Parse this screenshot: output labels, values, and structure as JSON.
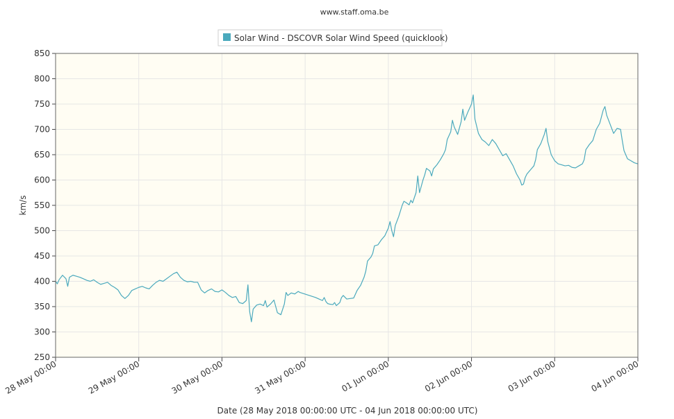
{
  "page": {
    "source_label": "www.staff.oma.be"
  },
  "colors": {
    "series": "#4aa9bd",
    "plot_background": "#fffdf3",
    "grid": "#e6e6e6",
    "axis": "#444444",
    "text": "#333333"
  },
  "chart_data": {
    "type": "line",
    "title": "",
    "xlabel": "Date (28 May 2018 00:00:00 UTC - 04 Jun 2018 00:00:00 UTC)",
    "ylabel": "km/s",
    "legend": {
      "position": "top-center",
      "entries": [
        "Solar Wind - DSCOVR Solar Wind Speed (quicklook)"
      ]
    },
    "grid": true,
    "x_range_hours": [
      0,
      168
    ],
    "ylim": [
      250,
      850
    ],
    "y_ticks": [
      250,
      300,
      350,
      400,
      450,
      500,
      550,
      600,
      650,
      700,
      750,
      800,
      850
    ],
    "x_ticks": [
      {
        "label": "28 May 00:00",
        "hour": 0
      },
      {
        "label": "29 May 00:00",
        "hour": 24
      },
      {
        "label": "30 May 00:00",
        "hour": 48
      },
      {
        "label": "31 May 00:00",
        "hour": 72
      },
      {
        "label": "01 Jun 00:00",
        "hour": 96
      },
      {
        "label": "02 Jun 00:00",
        "hour": 120
      },
      {
        "label": "03 Jun 00:00",
        "hour": 144
      },
      {
        "label": "04 Jun 00:00",
        "hour": 168
      }
    ],
    "series": [
      {
        "name": "Solar Wind - DSCOVR Solar Wind Speed (quicklook)",
        "x_unit": "hours since 28 May 2018 00:00 UTC",
        "points": [
          [
            0,
            400
          ],
          [
            0.5,
            395
          ],
          [
            1,
            403
          ],
          [
            2,
            412
          ],
          [
            3,
            405
          ],
          [
            3.5,
            390
          ],
          [
            4,
            408
          ],
          [
            5,
            412
          ],
          [
            6,
            410
          ],
          [
            7,
            408
          ],
          [
            8,
            405
          ],
          [
            9,
            402
          ],
          [
            10,
            400
          ],
          [
            11,
            403
          ],
          [
            12,
            398
          ],
          [
            13,
            394
          ],
          [
            14,
            396
          ],
          [
            15,
            398
          ],
          [
            16,
            392
          ],
          [
            17,
            388
          ],
          [
            18,
            383
          ],
          [
            19,
            372
          ],
          [
            20,
            366
          ],
          [
            21,
            372
          ],
          [
            22,
            382
          ],
          [
            23,
            385
          ],
          [
            24,
            388
          ],
          [
            25,
            390
          ],
          [
            26,
            387
          ],
          [
            27,
            385
          ],
          [
            28,
            392
          ],
          [
            29,
            398
          ],
          [
            30,
            402
          ],
          [
            31,
            400
          ],
          [
            32,
            405
          ],
          [
            33,
            410
          ],
          [
            34,
            415
          ],
          [
            35,
            418
          ],
          [
            36,
            408
          ],
          [
            37,
            402
          ],
          [
            38,
            399
          ],
          [
            39,
            400
          ],
          [
            40,
            398
          ],
          [
            41,
            398
          ],
          [
            42,
            383
          ],
          [
            43,
            377
          ],
          [
            44,
            382
          ],
          [
            45,
            385
          ],
          [
            46,
            380
          ],
          [
            47,
            379
          ],
          [
            48,
            383
          ],
          [
            49,
            378
          ],
          [
            50,
            372
          ],
          [
            51,
            368
          ],
          [
            52,
            370
          ],
          [
            53,
            358
          ],
          [
            54,
            356
          ],
          [
            55,
            362
          ],
          [
            55.5,
            393
          ],
          [
            56,
            340
          ],
          [
            56.5,
            320
          ],
          [
            57,
            345
          ],
          [
            58,
            353
          ],
          [
            59,
            355
          ],
          [
            60,
            352
          ],
          [
            60.5,
            362
          ],
          [
            61,
            349
          ],
          [
            62,
            355
          ],
          [
            63,
            363
          ],
          [
            64,
            338
          ],
          [
            65,
            334
          ],
          [
            66,
            355
          ],
          [
            66.5,
            378
          ],
          [
            67,
            372
          ],
          [
            68,
            377
          ],
          [
            69,
            375
          ],
          [
            70,
            380
          ],
          [
            70.5,
            378
          ],
          [
            75,
            368
          ],
          [
            76,
            365
          ],
          [
            77,
            362
          ],
          [
            77.5,
            368
          ],
          [
            78,
            360
          ],
          [
            78.5,
            356
          ],
          [
            79,
            355
          ],
          [
            80,
            354
          ],
          [
            80.5,
            358
          ],
          [
            81,
            352
          ],
          [
            82,
            358
          ],
          [
            82.5,
            368
          ],
          [
            83,
            372
          ],
          [
            84,
            365
          ],
          [
            85,
            366
          ],
          [
            86,
            367
          ],
          [
            87,
            382
          ],
          [
            88,
            392
          ],
          [
            89,
            408
          ],
          [
            89.5,
            420
          ],
          [
            90,
            440
          ],
          [
            91,
            448
          ],
          [
            91.5,
            455
          ],
          [
            92,
            470
          ],
          [
            93,
            472
          ],
          [
            94,
            482
          ],
          [
            95,
            490
          ],
          [
            96,
            505
          ],
          [
            96.5,
            518
          ],
          [
            97,
            500
          ],
          [
            97.5,
            488
          ],
          [
            98,
            510
          ],
          [
            99,
            528
          ],
          [
            100,
            550
          ],
          [
            100.5,
            558
          ],
          [
            101,
            556
          ],
          [
            102,
            551
          ],
          [
            102.5,
            560
          ],
          [
            103,
            555
          ],
          [
            104,
            575
          ],
          [
            104.5,
            608
          ],
          [
            105,
            575
          ],
          [
            106,
            600
          ],
          [
            106.5,
            610
          ],
          [
            107,
            623
          ],
          [
            108,
            618
          ],
          [
            108.5,
            608
          ],
          [
            109,
            622
          ],
          [
            110,
            630
          ],
          [
            111,
            640
          ],
          [
            112,
            652
          ],
          [
            112.5,
            660
          ],
          [
            113,
            680
          ],
          [
            114,
            695
          ],
          [
            114.5,
            718
          ],
          [
            115,
            705
          ],
          [
            116,
            690
          ],
          [
            117,
            715
          ],
          [
            117.5,
            740
          ],
          [
            118,
            718
          ],
          [
            119,
            735
          ],
          [
            120,
            750
          ],
          [
            120.5,
            768
          ],
          [
            121,
            720
          ],
          [
            122,
            692
          ],
          [
            123,
            680
          ],
          [
            124,
            675
          ],
          [
            125,
            668
          ],
          [
            126,
            680
          ],
          [
            127,
            672
          ],
          [
            128,
            660
          ],
          [
            129,
            648
          ],
          [
            130,
            652
          ],
          [
            131,
            640
          ],
          [
            132,
            628
          ],
          [
            133,
            612
          ],
          [
            134,
            600
          ],
          [
            134.5,
            590
          ],
          [
            135,
            592
          ],
          [
            135.5,
            605
          ],
          [
            136,
            612
          ],
          [
            137,
            620
          ],
          [
            138,
            628
          ],
          [
            138.5,
            640
          ],
          [
            139,
            660
          ],
          [
            140,
            672
          ],
          [
            141,
            690
          ],
          [
            141.5,
            702
          ],
          [
            142,
            676
          ],
          [
            143,
            650
          ],
          [
            144,
            638
          ],
          [
            145,
            632
          ],
          [
            146,
            630
          ],
          [
            147,
            628
          ],
          [
            148,
            629
          ],
          [
            149,
            625
          ],
          [
            150,
            624
          ],
          [
            151,
            628
          ],
          [
            152,
            632
          ],
          [
            152.5,
            640
          ],
          [
            153,
            660
          ],
          [
            154,
            670
          ],
          [
            155,
            678
          ],
          [
            156,
            700
          ],
          [
            157,
            712
          ],
          [
            158,
            738
          ],
          [
            158.5,
            745
          ],
          [
            159,
            728
          ],
          [
            160,
            710
          ],
          [
            161,
            692
          ],
          [
            162,
            702
          ],
          [
            163,
            700
          ],
          [
            163.5,
            678
          ],
          [
            164,
            658
          ],
          [
            165,
            642
          ],
          [
            166,
            638
          ],
          [
            167,
            634
          ],
          [
            168,
            632
          ]
        ]
      }
    ]
  }
}
